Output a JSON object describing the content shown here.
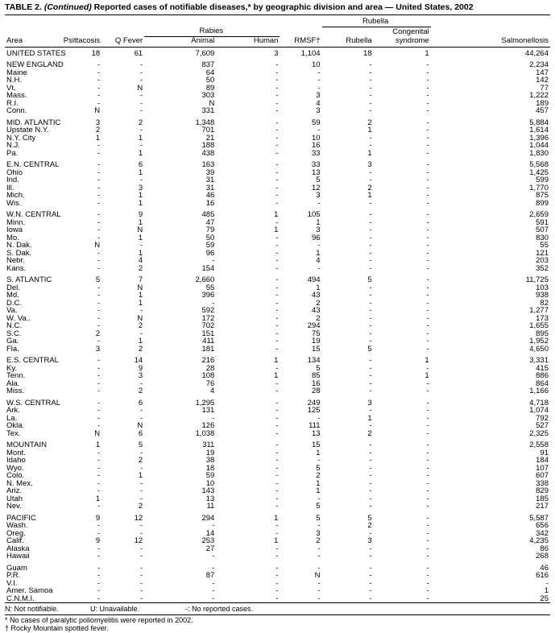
{
  "title": {
    "prefix": "TABLE 2.",
    "continued": "(Continued)",
    "text": "Reported cases of notifiable diseases,* by geographic division and area — United States, 2002"
  },
  "table": {
    "group_headers": {
      "rabies": "Rabies",
      "rubella": "Rubella"
    },
    "columns": {
      "area": "Area",
      "psittacosis": "Psittacosis",
      "q_fever": "Q Fever",
      "animal": "Animal",
      "human": "Human",
      "rmsf": "RMSF†",
      "rubella": "Rubella",
      "congenital_line1": "Congenital",
      "congenital_line2": "syndrome",
      "salmonellosis": "Salmonellosis"
    },
    "groups": [
      [
        [
          "UNITED STATES",
          "18",
          "61",
          "7,609",
          "3",
          "1,104",
          "18",
          "1",
          "44,264"
        ]
      ],
      [
        [
          "NEW ENGLAND",
          "-",
          "-",
          "837",
          "-",
          "10",
          "-",
          "-",
          "2,234"
        ],
        [
          "Maine",
          "-",
          "-",
          "64",
          "-",
          "-",
          "-",
          "-",
          "147"
        ],
        [
          "N.H.",
          "-",
          "-",
          "50",
          "-",
          "-",
          "-",
          "-",
          "142"
        ],
        [
          "Vt.",
          "-",
          "N",
          "89",
          "-",
          "-",
          "-",
          "-",
          "77"
        ],
        [
          "Mass.",
          "-",
          "-",
          "303",
          "-",
          "3",
          "-",
          "-",
          "1,222"
        ],
        [
          "R.I.",
          "-",
          "-",
          "N",
          "-",
          "4",
          "-",
          "-",
          "189"
        ],
        [
          "Conn.",
          "N",
          "-",
          "331",
          "-",
          "3",
          "-",
          "-",
          "457"
        ]
      ],
      [
        [
          "MID. ATLANTIC",
          "3",
          "2",
          "1,348",
          "-",
          "59",
          "2",
          "-",
          "5,884"
        ],
        [
          "Upstate N.Y.",
          "2",
          "-",
          "701",
          "-",
          "-",
          "1",
          "-",
          "1,614"
        ],
        [
          "N.Y. City",
          "1",
          "1",
          "21",
          "-",
          "10",
          "-",
          "-",
          "1,396"
        ],
        [
          "N.J.",
          "-",
          "-",
          "188",
          "-",
          "16",
          "-",
          "-",
          "1,044"
        ],
        [
          "Pa.",
          "-",
          "1",
          "438",
          "-",
          "33",
          "1",
          "-",
          "1,830"
        ]
      ],
      [
        [
          "E.N. CENTRAL",
          "-",
          "6",
          "163",
          "-",
          "33",
          "3",
          "-",
          "5,568"
        ],
        [
          "Ohio",
          "-",
          "1",
          "39",
          "-",
          "13",
          "-",
          "-",
          "1,425"
        ],
        [
          "Ind.",
          "-",
          "-",
          "31",
          "-",
          "5",
          "-",
          "-",
          "599"
        ],
        [
          "Ill.",
          "-",
          "3",
          "31",
          "-",
          "12",
          "2",
          "-",
          "1,770"
        ],
        [
          "Mich.",
          "-",
          "1",
          "46",
          "-",
          "3",
          "1",
          "-",
          "875"
        ],
        [
          "Wis.",
          "-",
          "1",
          "16",
          "-",
          "-",
          "-",
          "-",
          "899"
        ]
      ],
      [
        [
          "W.N. CENTRAL",
          "-",
          "9",
          "485",
          "1",
          "105",
          "-",
          "-",
          "2,659"
        ],
        [
          "Minn.",
          "-",
          "1",
          "47",
          "-",
          "1",
          "-",
          "-",
          "591"
        ],
        [
          "Iowa",
          "-",
          "N",
          "79",
          "1",
          "3",
          "-",
          "-",
          "507"
        ],
        [
          "Mo.",
          "-",
          "1",
          "50",
          "-",
          "96",
          "-",
          "-",
          "830"
        ],
        [
          "N. Dak.",
          "N",
          "-",
          "59",
          "-",
          "-",
          "-",
          "-",
          "55"
        ],
        [
          "S. Dak.",
          "-",
          "1",
          "96",
          "-",
          "1",
          "-",
          "-",
          "121"
        ],
        [
          "Nebr.",
          "-",
          "4",
          "-",
          "-",
          "4",
          "-",
          "-",
          "203"
        ],
        [
          "Kans.",
          "-",
          "2",
          "154",
          "-",
          "-",
          "-",
          "-",
          "352"
        ]
      ],
      [
        [
          "S. ATLANTIC",
          "5",
          "7",
          "2,660",
          "-",
          "494",
          "5",
          "-",
          "11,725"
        ],
        [
          "Del.",
          "-",
          "N",
          "55",
          "-",
          "1",
          "-",
          "-",
          "103"
        ],
        [
          "Md.",
          "-",
          "1",
          "396",
          "-",
          "43",
          "-",
          "-",
          "938"
        ],
        [
          "D.C.",
          "-",
          "1",
          "-",
          "-",
          "2",
          "-",
          "-",
          "82"
        ],
        [
          "Va.",
          "-",
          "-",
          "592",
          "-",
          "43",
          "-",
          "-",
          "1,277"
        ],
        [
          "W. Va..",
          "-",
          "N",
          "172",
          "-",
          "2",
          "-",
          "-",
          "173"
        ],
        [
          "N.C.",
          "-",
          "2",
          "702",
          "-",
          "294",
          "-",
          "-",
          "1,655"
        ],
        [
          "S.C.",
          "2",
          "-",
          "151",
          "-",
          "75",
          "-",
          "-",
          "895"
        ],
        [
          "Ga.",
          "-",
          "1",
          "411",
          "-",
          "19",
          "-",
          "-",
          "1,952"
        ],
        [
          "Fla.",
          "3",
          "2",
          "181",
          "-",
          "15",
          "5",
          "-",
          "4,650"
        ]
      ],
      [
        [
          "E.S. CENTRAL",
          "-",
          "14",
          "216",
          "1",
          "134",
          "-",
          "1",
          "3,331"
        ],
        [
          "Ky.",
          "-",
          "9",
          "28",
          "-",
          "5",
          "-",
          "-",
          "415"
        ],
        [
          "Tenn.",
          "-",
          "3",
          "108",
          "1",
          "85",
          "-",
          "1",
          "886"
        ],
        [
          "Ala.",
          "-",
          "-",
          "76",
          "-",
          "16",
          "-",
          "-",
          "864"
        ],
        [
          "Miss.",
          "-",
          "2",
          "4",
          "-",
          "28",
          "-",
          "-",
          "1,166"
        ]
      ],
      [
        [
          "W.S. CENTRAL",
          "-",
          "6",
          "1,295",
          "-",
          "249",
          "3",
          "-",
          "4,718"
        ],
        [
          "Ark.",
          "-",
          "-",
          "131",
          "-",
          "125",
          "-",
          "-",
          "1,074"
        ],
        [
          "La.",
          "-",
          "-",
          "-",
          "-",
          "-",
          "1",
          "-",
          "792"
        ],
        [
          "Okla.",
          "-",
          "N",
          "126",
          "-",
          "111",
          "-",
          "-",
          "527"
        ],
        [
          "Tex.",
          "N",
          "6",
          "1,038",
          "-",
          "13",
          "2",
          "-",
          "2,325"
        ]
      ],
      [
        [
          "MOUNTAIN",
          "1",
          "5",
          "311",
          "-",
          "15",
          "-",
          "-",
          "2,558"
        ],
        [
          "Mont.",
          "-",
          "-",
          "19",
          "-",
          "1",
          "-",
          "-",
          "91"
        ],
        [
          "Idaho",
          "-",
          "2",
          "38",
          "-",
          "-",
          "-",
          "-",
          "184"
        ],
        [
          "Wyo.",
          "-",
          "-",
          "18",
          "-",
          "5",
          "-",
          "-",
          "107"
        ],
        [
          "Colo.",
          "-",
          "1",
          "59",
          "-",
          "2",
          "-",
          "-",
          "607"
        ],
        [
          "N. Mex.",
          "-",
          "-",
          "10",
          "-",
          "1",
          "-",
          "-",
          "338"
        ],
        [
          "Ariz.",
          "-",
          "-",
          "143",
          "-",
          "1",
          "-",
          "-",
          "829"
        ],
        [
          "Utah",
          "1",
          "-",
          "13",
          "-",
          "-",
          "-",
          "-",
          "185"
        ],
        [
          "Nev.",
          "-",
          "2",
          "11",
          "-",
          "5",
          "-",
          "-",
          "217"
        ]
      ],
      [
        [
          "PACIFIC",
          "9",
          "12",
          "294",
          "1",
          "5",
          "5",
          "-",
          "5,587"
        ],
        [
          "Wash.",
          "-",
          "-",
          "-",
          "-",
          "-",
          "2",
          "-",
          "656"
        ],
        [
          "Oreg.",
          "-",
          "-",
          "14",
          "-",
          "3",
          "-",
          "-",
          "342"
        ],
        [
          "Calif.",
          "9",
          "12",
          "253",
          "1",
          "2",
          "3",
          "-",
          "4,235"
        ],
        [
          "Alaska",
          "-",
          "-",
          "27",
          "-",
          "-",
          "-",
          "-",
          "86"
        ],
        [
          "Hawaii",
          "-",
          "-",
          "-",
          "-",
          "-",
          "-",
          "-",
          "268"
        ]
      ],
      [
        [
          "Guam",
          "-",
          "-",
          "-",
          "-",
          "-",
          "-",
          "-",
          "46"
        ],
        [
          "P.R.",
          "-",
          "-",
          "87",
          "-",
          "N",
          "-",
          "-",
          "616"
        ],
        [
          "V.I.",
          "-",
          "-",
          "-",
          "-",
          "-",
          "-",
          "-",
          "-"
        ],
        [
          "Amer. Samoa",
          "-",
          "-",
          "-",
          "-",
          "-",
          "-",
          "-",
          "1"
        ],
        [
          "C.N.M.I.",
          "-",
          "-",
          "-",
          "-",
          "-",
          "-",
          "-",
          "25"
        ]
      ]
    ]
  },
  "footnotes": {
    "legend_n": "N: Not notifiable.",
    "legend_u": "U: Unavailable.",
    "legend_dash": "-: No reported cases.",
    "star": "* No cases of paralytic poliomyelitis were reported in 2002.",
    "dagger": "† Rocky Mountain spotted fever."
  }
}
